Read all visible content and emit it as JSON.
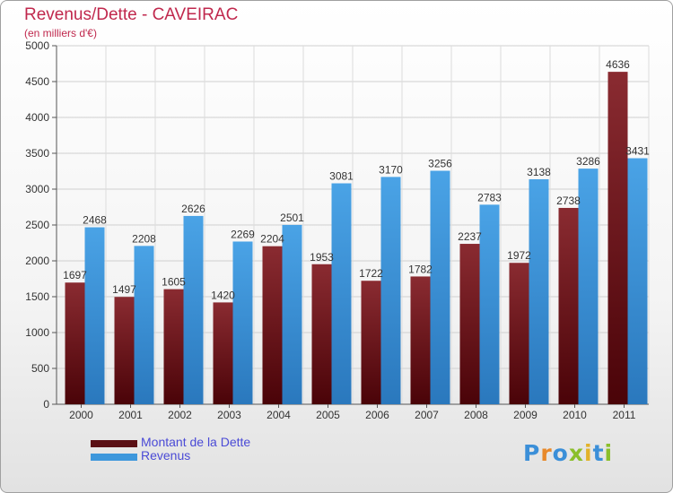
{
  "header": {
    "title": "Revenus/Dette - CAVEIRAC",
    "subtitle": "(en milliers d'€)"
  },
  "chart_data": {
    "type": "bar",
    "title": "Revenus/Dette - CAVEIRAC",
    "subtitle": "(en milliers d'€)",
    "xlabel": "",
    "ylabel": "",
    "categories": [
      "2000",
      "2001",
      "2002",
      "2003",
      "2004",
      "2005",
      "2006",
      "2007",
      "2008",
      "2009",
      "2010",
      "2011"
    ],
    "series": [
      {
        "name": "Montant de la Dette",
        "color": "#7a1c22",
        "values": [
          1697,
          1497,
          1605,
          1420,
          2204,
          1953,
          1722,
          1782,
          2237,
          1972,
          2738,
          4636
        ],
        "labels": [
          "1697",
          "1497",
          "1605",
          "1420",
          "2204",
          "1953",
          "1722",
          "1782",
          "2237",
          "1972",
          "2738",
          "4636"
        ]
      },
      {
        "name": "Revenus",
        "color": "#3d97dc",
        "values": [
          2468,
          2208,
          2626,
          2269,
          2501,
          3081,
          3170,
          3256,
          2783,
          3138,
          3286,
          3431
        ],
        "labels": [
          "2468",
          "2208",
          "2626",
          "2269",
          "2501",
          "3081",
          "3170",
          "3256",
          "2783",
          "3138",
          "3286",
          "3431"
        ]
      }
    ],
    "ylim": [
      0,
      5000
    ],
    "yticks": [
      0,
      500,
      1000,
      1500,
      2000,
      2500,
      3000,
      3500,
      4000,
      4500,
      5000
    ],
    "grid": true,
    "legend_position": "bottom-left"
  },
  "legend": {
    "items": [
      {
        "label": "Montant de la Dette",
        "color": "#5a0f14"
      },
      {
        "label": "Revenus",
        "color": "#3d97dc"
      }
    ]
  },
  "branding": {
    "logo_text": "Proxiti",
    "logo_colors": [
      "#3b8fd8",
      "#e8892a",
      "#3b8fd8",
      "#8bbf2a",
      "#e2b22a",
      "#3b8fd8",
      "#8bbf2a"
    ]
  }
}
